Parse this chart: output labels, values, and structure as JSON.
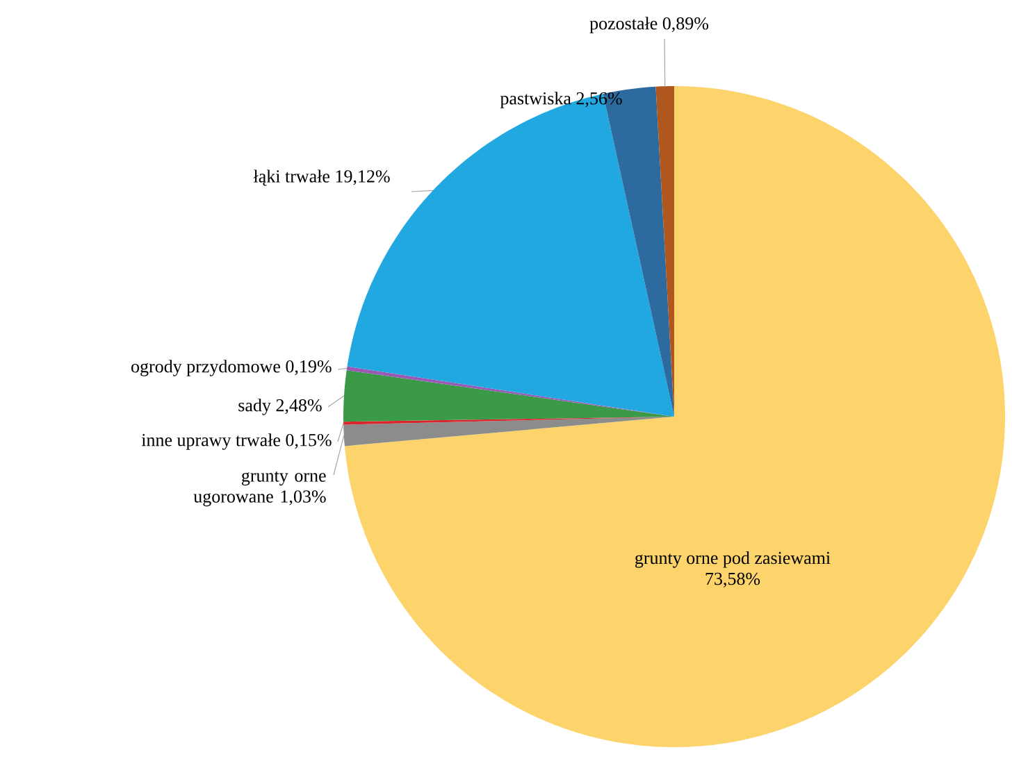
{
  "chart_data": {
    "type": "pie",
    "categories": [
      "grunty orne pod zasiewami",
      "grunty orne ugorowane",
      "inne uprawy trwałe",
      "sady",
      "ogrody przydomowe",
      "łąki trwałe",
      "pastwiska",
      "pozostałe"
    ],
    "values": [
      73.58,
      1.03,
      0.15,
      2.48,
      0.19,
      19.12,
      2.56,
      0.89
    ],
    "value_labels": [
      "73,58%",
      "1,03%",
      "0,15%",
      "2,48%",
      "0,19%",
      "19,12%",
      "2,56%",
      "0,89%"
    ],
    "colors": [
      "#fdd36b",
      "#8c8c8c",
      "#d9262e",
      "#3a9a48",
      "#9b59b6",
      "#22a8e0",
      "#2d6aa0",
      "#b0561f"
    ]
  }
}
